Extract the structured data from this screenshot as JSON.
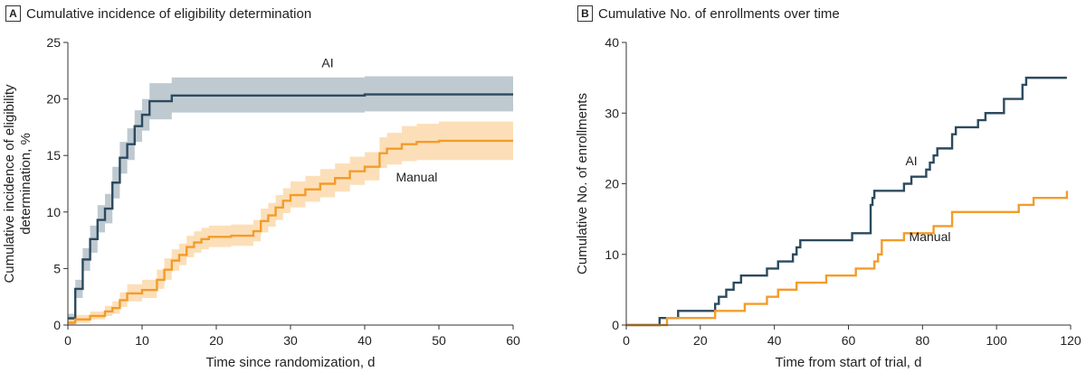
{
  "panels": [
    {
      "letter": "A",
      "title": "Cumulative incidence of eligibility determination",
      "chart_data": {
        "type": "line",
        "subtype": "step-with-confidence-band",
        "xlabel": "Time since randomization, d",
        "ylabel_lines": [
          "Cumulative incidence of eligibility",
          "determination, %"
        ],
        "xlim": [
          0,
          60
        ],
        "ylim": [
          0,
          25
        ],
        "xticks": [
          0,
          10,
          20,
          30,
          40,
          50,
          60
        ],
        "yticks": [
          0,
          5,
          10,
          15,
          20,
          25
        ],
        "series": [
          {
            "name": "AI",
            "label": "AI",
            "color": "#2c4a5e",
            "band_color": "#b3c0c8",
            "label_pos": [
              35,
              22.8
            ],
            "x": [
              0,
              1,
              2,
              3,
              4,
              5,
              6,
              7,
              8,
              9,
              10,
              11,
              14,
              20,
              40,
              60
            ],
            "y": [
              0.6,
              3.2,
              5.8,
              7.6,
              9.3,
              10.3,
              12.6,
              14.8,
              16.0,
              17.6,
              18.6,
              19.8,
              20.3,
              20.3,
              20.4,
              20.4
            ],
            "lower": [
              0.3,
              2.4,
              4.8,
              6.4,
              8.2,
              9.0,
              11.2,
              13.4,
              14.6,
              16.2,
              17.2,
              18.2,
              18.8,
              18.8,
              18.9,
              18.9
            ],
            "upper": [
              1.0,
              4.0,
              6.8,
              8.8,
              10.6,
              11.6,
              14.0,
              16.2,
              17.4,
              19.0,
              20.0,
              21.4,
              21.9,
              21.9,
              22.0,
              22.0
            ]
          },
          {
            "name": "Manual",
            "label": "Manual",
            "color": "#f39c2a",
            "band_color": "#fbd9ac",
            "label_pos": [
              47,
              12.7
            ],
            "x": [
              0,
              1,
              3,
              5,
              6,
              7,
              8,
              10,
              12,
              13,
              14,
              15,
              16,
              17,
              18,
              19,
              22,
              25,
              26,
              27,
              28,
              29,
              30,
              32,
              34,
              36,
              38,
              40,
              42,
              43,
              45,
              47,
              50,
              60
            ],
            "y": [
              0.2,
              0.5,
              0.8,
              1.2,
              1.5,
              2.2,
              2.8,
              3.1,
              4.0,
              4.9,
              5.7,
              6.2,
              6.9,
              7.3,
              7.6,
              7.8,
              7.9,
              8.3,
              9.2,
              9.7,
              10.4,
              11.0,
              11.5,
              12.0,
              12.5,
              13.0,
              13.6,
              14.0,
              15.2,
              15.6,
              16.0,
              16.2,
              16.3,
              16.3
            ],
            "lower": [
              0.0,
              0.2,
              0.5,
              0.8,
              1.0,
              1.6,
              2.1,
              2.4,
              3.2,
              4.0,
              4.8,
              5.3,
              6.0,
              6.4,
              6.7,
              6.9,
              7.0,
              7.4,
              8.2,
              8.7,
              9.3,
              9.9,
              10.4,
              10.9,
              11.3,
              11.8,
              12.4,
              12.8,
              13.9,
              14.2,
              14.5,
              14.6,
              14.6,
              14.6
            ],
            "upper": [
              0.5,
              0.9,
              1.2,
              1.7,
              2.1,
              2.9,
              3.6,
              4.0,
              4.9,
              5.9,
              6.7,
              7.2,
              7.9,
              8.3,
              8.6,
              8.8,
              8.9,
              9.3,
              10.3,
              10.8,
              11.5,
              12.1,
              12.7,
              13.2,
              13.8,
              14.3,
              14.9,
              15.3,
              16.6,
              17.0,
              17.6,
              17.8,
              18.0,
              18.0
            ]
          }
        ]
      }
    },
    {
      "letter": "B",
      "title": "Cumulative No. of enrollments over time",
      "chart_data": {
        "type": "line",
        "subtype": "step",
        "xlabel": "Time from start of trial, d",
        "ylabel": "Cumulative No. of enrollments",
        "xlim": [
          0,
          120
        ],
        "ylim": [
          0,
          40
        ],
        "xticks": [
          0,
          20,
          40,
          60,
          80,
          100,
          120
        ],
        "yticks": [
          0,
          10,
          20,
          30,
          40
        ],
        "series": [
          {
            "name": "AI",
            "label": "AI",
            "color": "#2c4a5e",
            "label_pos": [
              77,
              22.6
            ],
            "x": [
              0,
              9,
              12,
              14,
              24,
              25,
              26,
              27,
              28,
              29,
              31,
              32,
              34,
              38,
              39,
              41,
              42,
              45,
              46,
              47,
              60,
              61,
              66,
              66.5,
              67,
              74,
              75,
              77,
              81,
              82,
              83,
              84,
              85,
              88,
              89,
              91,
              95,
              97,
              98,
              102,
              106,
              107,
              108,
              110,
              119
            ],
            "y": [
              0,
              1,
              1,
              2,
              3,
              4,
              4,
              5,
              5,
              6,
              7,
              7,
              7,
              8,
              8,
              9,
              9,
              10,
              11,
              12,
              12,
              13,
              17,
              18,
              19,
              19,
              20,
              21,
              22,
              23,
              24,
              25,
              25,
              27,
              28,
              28,
              29,
              30,
              30,
              32,
              32,
              34,
              35,
              35,
              35
            ]
          },
          {
            "name": "Manual",
            "label": "Manual",
            "color": "#f39c2a",
            "label_pos": [
              82,
              11.9
            ],
            "x": [
              0,
              11,
              14,
              19,
              24,
              25,
              30,
              32,
              37,
              38,
              40,
              41,
              42,
              46,
              52,
              54,
              61,
              62,
              66,
              67,
              68,
              69,
              74,
              75,
              80,
              83,
              87,
              88,
              90,
              106,
              108,
              110,
              112,
              119
            ],
            "y": [
              0,
              1,
              1,
              1,
              2,
              2,
              2,
              3,
              3,
              4,
              4,
              5,
              5,
              6,
              6,
              7,
              7,
              8,
              8,
              9,
              10,
              12,
              12,
              13,
              13,
              14,
              14,
              16,
              16,
              17,
              17,
              18,
              18,
              19
            ]
          }
        ]
      }
    }
  ]
}
